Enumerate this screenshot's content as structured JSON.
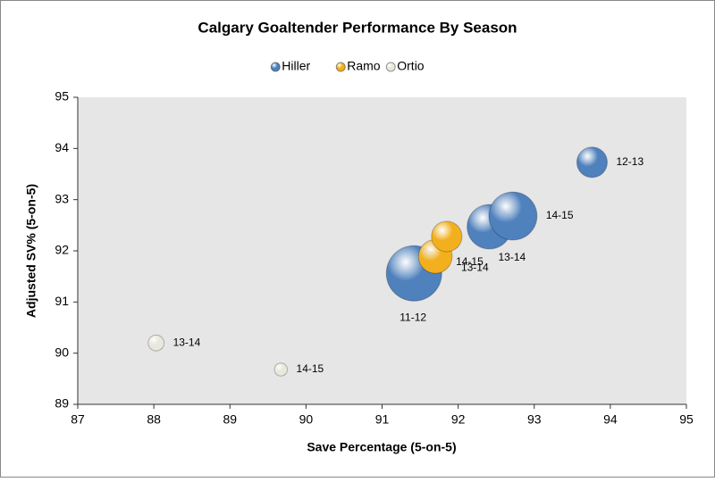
{
  "chart_data": {
    "type": "bubble",
    "title": "Calgary Goaltender Performance By Season",
    "x_label": "Save Percentage (5-on-5)",
    "y_label": "Adjusted SV% (5-on-5)",
    "xlim": [
      87,
      95
    ],
    "xticks": [
      87,
      88,
      89,
      90,
      91,
      92,
      93,
      94,
      95
    ],
    "ylim": [
      89,
      95
    ],
    "yticks": [
      89,
      90,
      91,
      92,
      93,
      94,
      95
    ],
    "legend": "top",
    "series": [
      {
        "name": "Hiller",
        "color": "#4f81bd",
        "x": [
          91.42,
          93.76,
          92.41,
          92.72
        ],
        "y": [
          91.56,
          93.73,
          92.47,
          92.68
        ],
        "size": [
          73,
          22,
          47,
          55
        ],
        "labels": [
          "11-12",
          "12-13",
          "13-14",
          "14-15"
        ]
      },
      {
        "name": "Ramo",
        "color": "#f2b01e",
        "x": [
          91.7,
          91.85
        ],
        "y": [
          91.89,
          92.28
        ],
        "size": [
          27,
          22
        ],
        "labels": [
          "13-14",
          "14-15"
        ]
      },
      {
        "name": "Ortio",
        "color": "#e8e8dc",
        "x": [
          88.03,
          89.67
        ],
        "y": [
          90.2,
          89.68
        ],
        "size": [
          6,
          4
        ],
        "labels": [
          "13-14",
          "14-15"
        ]
      }
    ]
  }
}
